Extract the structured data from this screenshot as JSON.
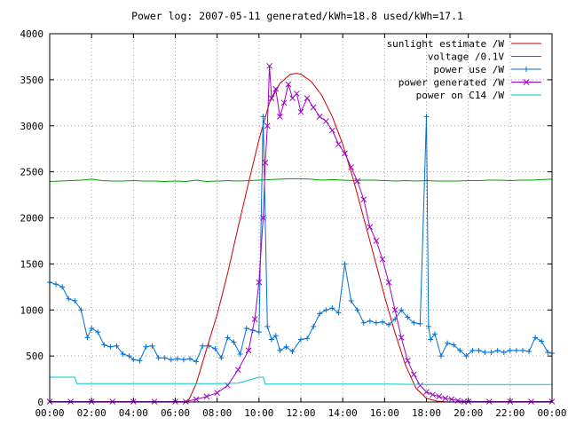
{
  "chart_data": {
    "type": "line",
    "title": "Power log: 2007-05-11 generated/kWh=18.8 used/kWh=17.1",
    "xlabel": "",
    "ylabel": "",
    "xlim": [
      0,
      24
    ],
    "ylim": [
      0,
      4000
    ],
    "grid": true,
    "legend_position": "top-right",
    "x_ticks": [
      {
        "value": 0,
        "label": "00:00"
      },
      {
        "value": 2,
        "label": "02:00"
      },
      {
        "value": 4,
        "label": "04:00"
      },
      {
        "value": 6,
        "label": "06:00"
      },
      {
        "value": 8,
        "label": "08:00"
      },
      {
        "value": 10,
        "label": "10:00"
      },
      {
        "value": 12,
        "label": "12:00"
      },
      {
        "value": 14,
        "label": "14:00"
      },
      {
        "value": 16,
        "label": "16:00"
      },
      {
        "value": 18,
        "label": "18:00"
      },
      {
        "value": 20,
        "label": "20:00"
      },
      {
        "value": 22,
        "label": "22:00"
      },
      {
        "value": 24,
        "label": "00:00"
      }
    ],
    "y_ticks": [
      {
        "value": 0,
        "label": "0"
      },
      {
        "value": 500,
        "label": "500"
      },
      {
        "value": 1000,
        "label": "1000"
      },
      {
        "value": 1500,
        "label": "1500"
      },
      {
        "value": 2000,
        "label": "2000"
      },
      {
        "value": 2500,
        "label": "2500"
      },
      {
        "value": 3000,
        "label": "3000"
      },
      {
        "value": 3500,
        "label": "3500"
      },
      {
        "value": 4000,
        "label": "4000"
      }
    ],
    "series": [
      {
        "name": "sunlight estimate /W",
        "color": "#cc0000",
        "style": "line",
        "x": [
          6.6,
          7.0,
          7.5,
          8.0,
          8.5,
          9.0,
          9.5,
          10.0,
          10.5,
          11.0,
          11.5,
          11.8,
          12.0,
          12.5,
          13.0,
          13.5,
          14.0,
          14.5,
          15.0,
          15.5,
          16.0,
          16.5,
          17.0,
          17.5,
          18.0,
          18.5,
          19.0
        ],
        "y": [
          0,
          200,
          580,
          950,
          1400,
          1900,
          2380,
          2850,
          3250,
          3460,
          3560,
          3570,
          3560,
          3480,
          3330,
          3100,
          2800,
          2420,
          2000,
          1580,
          1150,
          750,
          400,
          150,
          40,
          10,
          0
        ]
      },
      {
        "name": "voltage /0.1V",
        "color": "#00a000",
        "style": "line",
        "x": [
          0,
          0.5,
          1,
          1.5,
          2,
          2.5,
          3,
          3.5,
          4,
          4.5,
          5,
          5.5,
          6,
          6.5,
          7,
          7.5,
          8,
          8.5,
          9,
          9.5,
          10,
          10.5,
          11,
          11.5,
          12,
          12.5,
          13,
          13.5,
          14,
          14.5,
          15,
          15.5,
          16,
          16.5,
          17,
          17.5,
          18,
          18.5,
          19,
          19.5,
          20,
          20.5,
          21,
          21.5,
          22,
          22.5,
          23,
          23.5,
          24
        ],
        "y": [
          2395,
          2400,
          2405,
          2410,
          2420,
          2405,
          2400,
          2400,
          2405,
          2400,
          2400,
          2395,
          2400,
          2395,
          2410,
          2395,
          2400,
          2405,
          2400,
          2405,
          2410,
          2415,
          2420,
          2425,
          2425,
          2420,
          2410,
          2415,
          2410,
          2405,
          2410,
          2410,
          2405,
          2400,
          2405,
          2400,
          2405,
          2400,
          2400,
          2400,
          2405,
          2405,
          2410,
          2410,
          2405,
          2410,
          2410,
          2415,
          2420
        ]
      },
      {
        "name": "power use /W",
        "color": "#0070d0",
        "style": "linespoints-plus",
        "x": [
          0,
          0.3,
          0.6,
          0.9,
          1.2,
          1.5,
          1.8,
          2.0,
          2.3,
          2.6,
          2.9,
          3.2,
          3.5,
          3.8,
          4.0,
          4.3,
          4.6,
          4.9,
          5.2,
          5.5,
          5.8,
          6.1,
          6.4,
          6.7,
          7.0,
          7.3,
          7.6,
          7.9,
          8.2,
          8.5,
          8.8,
          9.1,
          9.4,
          9.7,
          10.0,
          10.2,
          10.4,
          10.6,
          10.8,
          11.0,
          11.3,
          11.6,
          12.0,
          12.3,
          12.6,
          12.9,
          13.2,
          13.5,
          13.8,
          14.1,
          14.4,
          14.7,
          15.0,
          15.3,
          15.6,
          15.9,
          16.2,
          16.5,
          16.8,
          17.1,
          17.4,
          17.7,
          18.0,
          18.1,
          18.2,
          18.4,
          18.7,
          19.0,
          19.3,
          19.6,
          19.9,
          20.2,
          20.5,
          20.8,
          21.1,
          21.4,
          21.7,
          22.0,
          22.3,
          22.6,
          22.9,
          23.2,
          23.5,
          23.8,
          24.0
        ],
        "y": [
          1300,
          1280,
          1250,
          1120,
          1100,
          1000,
          700,
          800,
          760,
          620,
          600,
          610,
          520,
          500,
          460,
          450,
          600,
          610,
          480,
          480,
          460,
          470,
          460,
          470,
          440,
          610,
          610,
          580,
          480,
          700,
          650,
          520,
          800,
          780,
          760,
          3100,
          820,
          680,
          720,
          560,
          600,
          550,
          680,
          690,
          820,
          960,
          1000,
          1020,
          970,
          1500,
          1100,
          1000,
          860,
          880,
          860,
          870,
          840,
          900,
          1000,
          920,
          860,
          850,
          3100,
          820,
          680,
          740,
          500,
          640,
          620,
          560,
          500,
          560,
          560,
          540,
          540,
          560,
          540,
          560,
          560,
          560,
          550,
          700,
          660,
          540,
          530
        ]
      },
      {
        "name": "power generated /W",
        "color": "#a000c8",
        "style": "linespoints-x",
        "x": [
          0,
          1,
          2,
          3,
          4,
          5,
          6,
          6.5,
          7.0,
          7.5,
          8.0,
          8.5,
          9.0,
          9.5,
          9.8,
          10.0,
          10.2,
          10.3,
          10.4,
          10.5,
          10.6,
          10.8,
          11.0,
          11.2,
          11.4,
          11.6,
          11.8,
          12.0,
          12.3,
          12.6,
          12.9,
          13.2,
          13.5,
          13.8,
          14.1,
          14.4,
          14.7,
          15.0,
          15.3,
          15.6,
          15.9,
          16.2,
          16.5,
          16.8,
          17.1,
          17.4,
          17.7,
          18.0,
          18.3,
          18.6,
          18.9,
          19.2,
          19.5,
          19.8,
          20.0,
          21,
          22,
          23,
          24
        ],
        "y": [
          5,
          5,
          5,
          5,
          5,
          5,
          5,
          5,
          30,
          60,
          100,
          180,
          350,
          560,
          900,
          1300,
          2000,
          2600,
          3000,
          3650,
          3300,
          3400,
          3100,
          3250,
          3450,
          3300,
          3350,
          3150,
          3300,
          3200,
          3100,
          3050,
          2950,
          2800,
          2700,
          2550,
          2400,
          2200,
          1900,
          1750,
          1550,
          1300,
          1000,
          700,
          450,
          300,
          180,
          110,
          80,
          60,
          40,
          30,
          15,
          5,
          5,
          5,
          5,
          5,
          5
        ]
      },
      {
        "name": "power on C14 /W",
        "color": "#00c8c8",
        "style": "line",
        "x": [
          0,
          0.5,
          1.0,
          1.2,
          1.3,
          2,
          4,
          6,
          8,
          9,
          10.0,
          10.2,
          10.3,
          11,
          14,
          16,
          18,
          20,
          22,
          24
        ],
        "y": [
          270,
          270,
          270,
          270,
          200,
          200,
          200,
          200,
          200,
          205,
          270,
          270,
          195,
          195,
          195,
          195,
          190,
          190,
          190,
          190
        ]
      }
    ]
  }
}
